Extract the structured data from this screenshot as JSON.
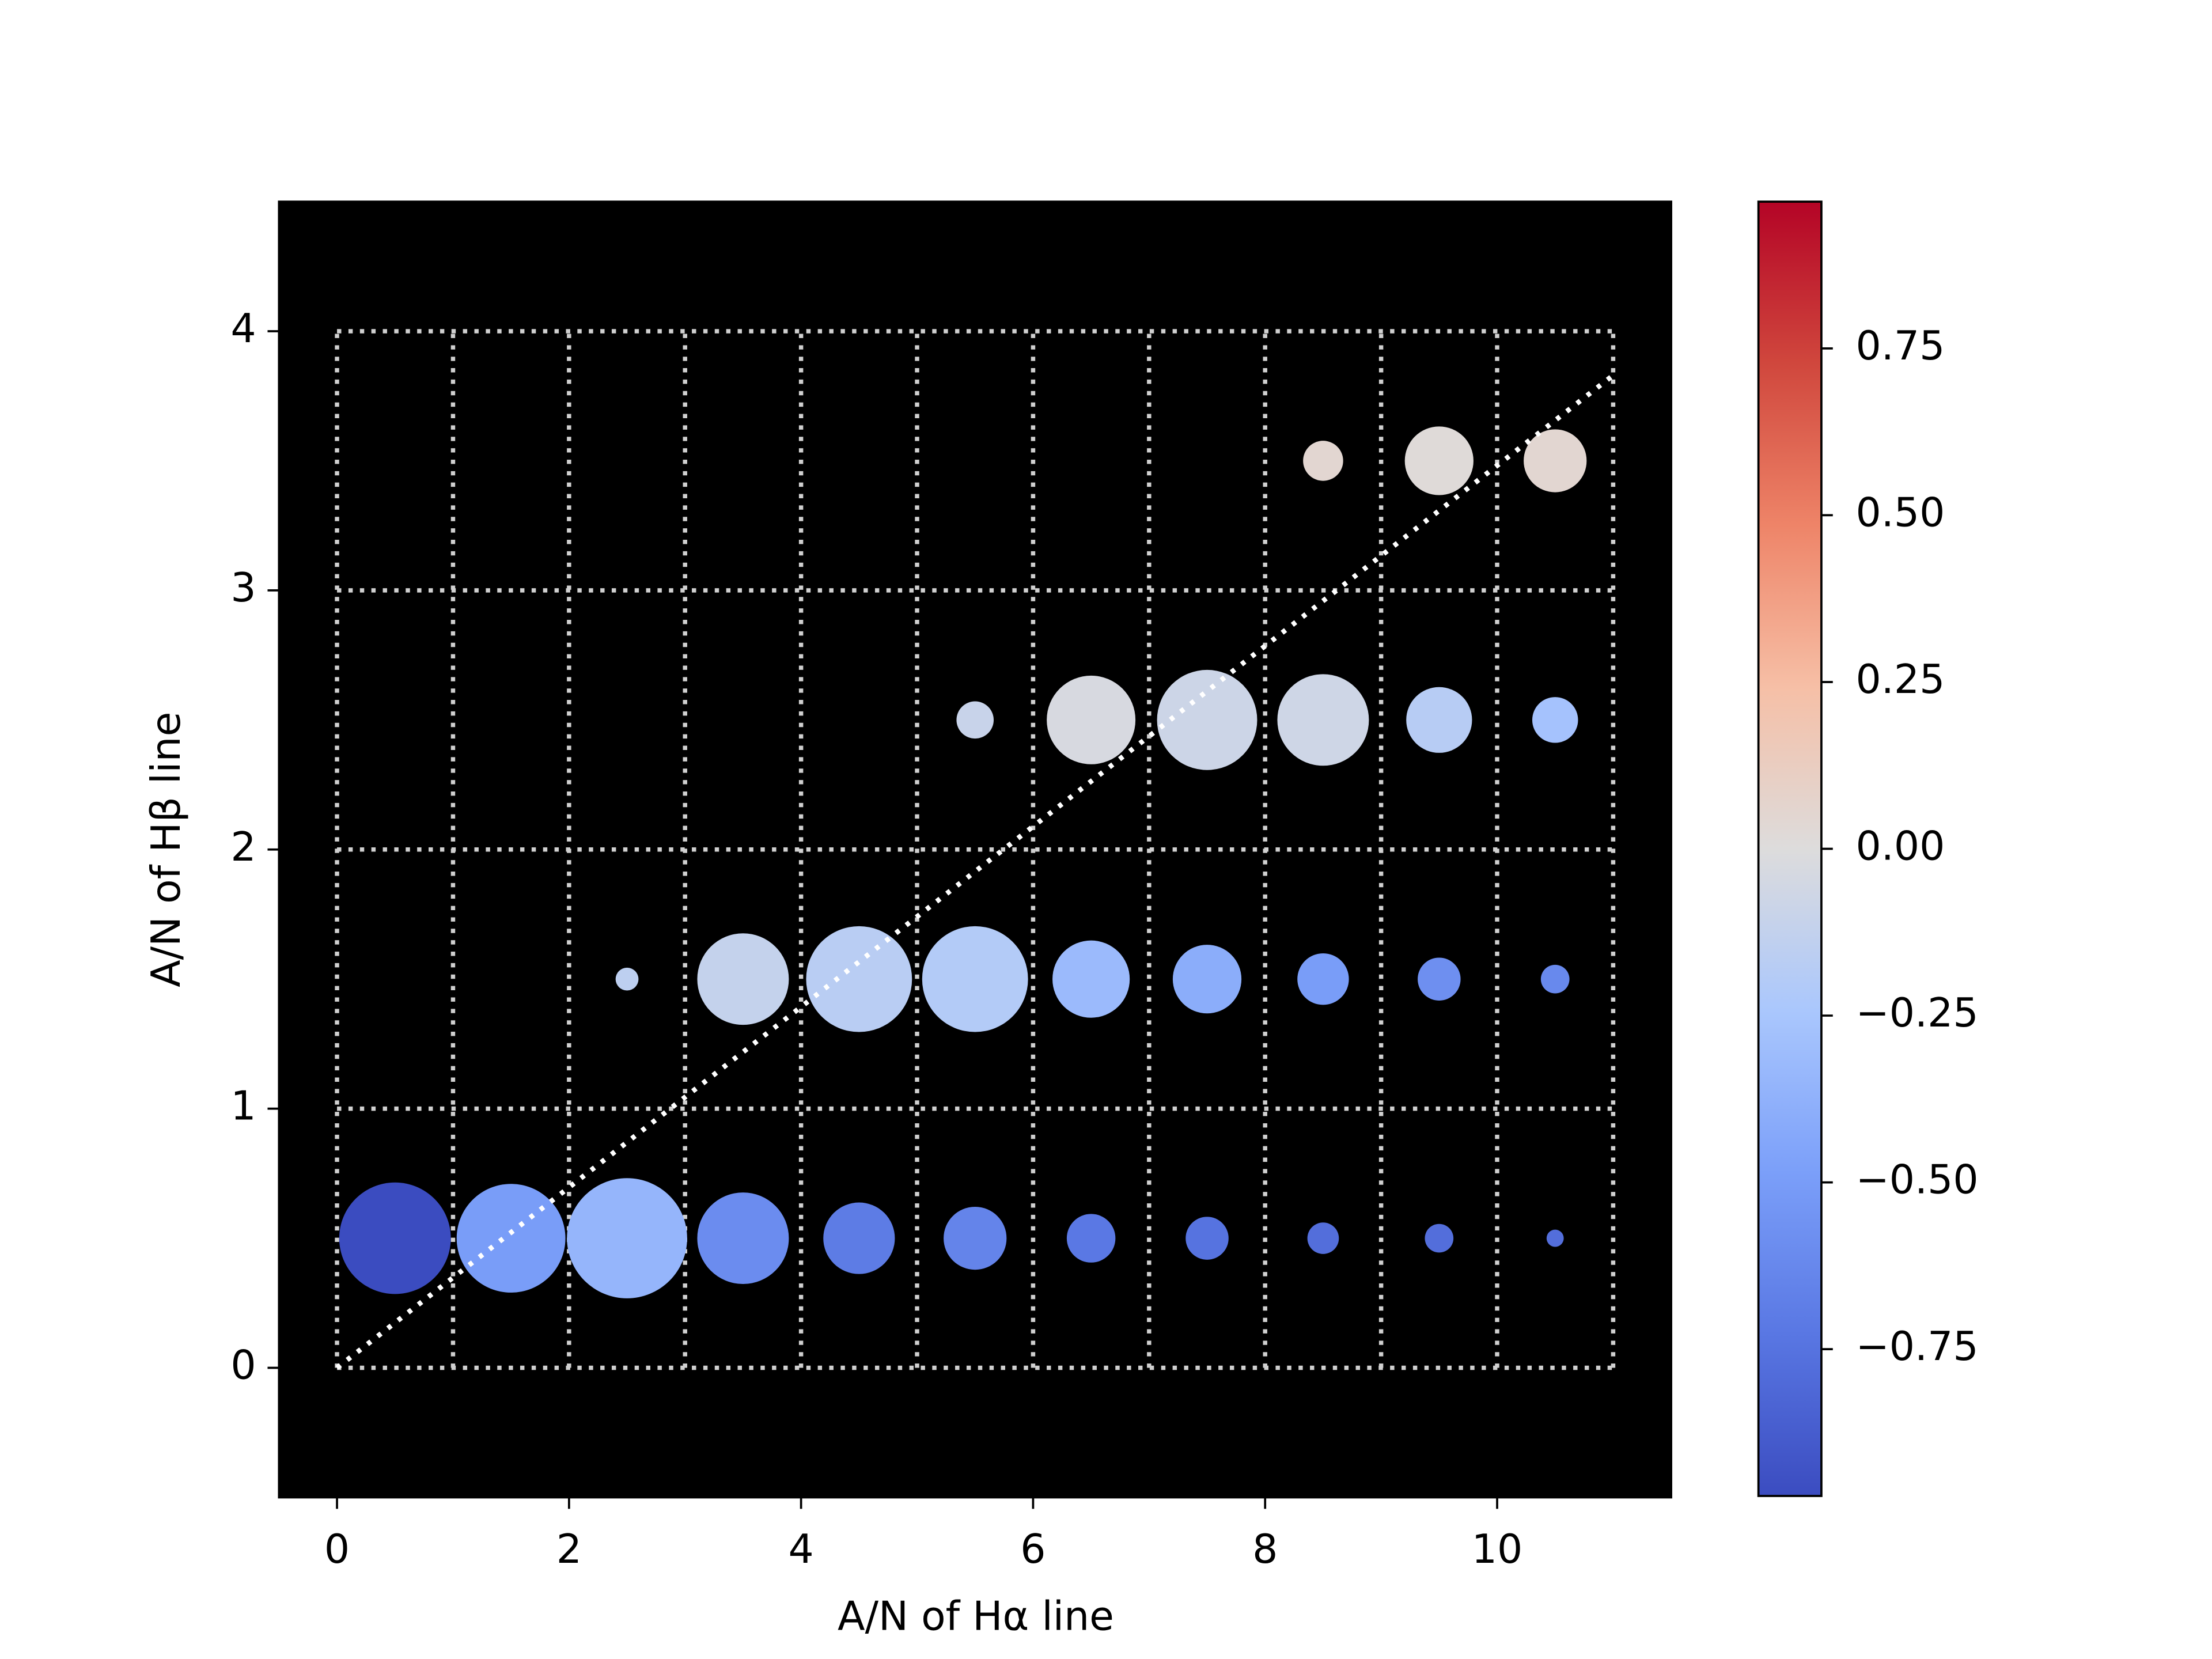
{
  "chart_data": {
    "type": "scatter",
    "xlabel": "A/N of Hα line",
    "ylabel": "A/N of Hβ line",
    "xlim": [
      -0.5,
      11.5
    ],
    "ylim": [
      -0.5,
      4.5
    ],
    "xticks": [
      0,
      2,
      4,
      6,
      8,
      10
    ],
    "yticks": [
      0,
      1,
      2,
      3,
      4
    ],
    "background": "#000000",
    "bin_edges_x": [
      0,
      1,
      2,
      3,
      4,
      5,
      6,
      7,
      8,
      9,
      10,
      11
    ],
    "bin_edges_y": [
      0,
      1,
      2,
      3,
      4
    ],
    "reference_line": {
      "x": [
        0,
        11
      ],
      "y": [
        0,
        3.83
      ]
    },
    "x": [
      0.5,
      1.5,
      2.5,
      3.5,
      4.5,
      5.5,
      6.5,
      7.5,
      8.5,
      9.5,
      10.5,
      2.5,
      3.5,
      4.5,
      5.5,
      6.5,
      7.5,
      8.5,
      9.5,
      10.5,
      5.5,
      6.5,
      7.5,
      8.5,
      9.5,
      10.5,
      8.5,
      9.5,
      10.5
    ],
    "y": [
      0.5,
      0.5,
      0.5,
      0.5,
      0.5,
      0.5,
      0.5,
      0.5,
      0.5,
      0.5,
      0.5,
      1.5,
      1.5,
      1.5,
      1.5,
      1.5,
      1.5,
      1.5,
      1.5,
      1.5,
      2.5,
      2.5,
      2.5,
      2.5,
      2.5,
      2.5,
      3.5,
      3.5,
      3.5
    ],
    "sizes": [
      39,
      38,
      42,
      32,
      25,
      22,
      17,
      15,
      11,
      10,
      6,
      8,
      32,
      37,
      37,
      27,
      24,
      18,
      15,
      10,
      13,
      31,
      35,
      32,
      23,
      16,
      14,
      24,
      22
    ],
    "colors": [
      -0.97,
      -0.5,
      -0.35,
      -0.6,
      -0.7,
      -0.65,
      -0.72,
      -0.75,
      -0.78,
      -0.78,
      -0.78,
      -0.15,
      -0.12,
      -0.17,
      -0.2,
      -0.32,
      -0.4,
      -0.5,
      -0.58,
      -0.62,
      -0.1,
      -0.03,
      -0.08,
      -0.07,
      -0.18,
      -0.27,
      0.05,
      0.02,
      0.05
    ],
    "colormap": "coolwarm",
    "clim": [
      -0.97,
      0.97
    ],
    "cticks": [
      {
        "value": -0.75,
        "label": "−0.75"
      },
      {
        "value": -0.5,
        "label": "−0.50"
      },
      {
        "value": -0.25,
        "label": "−0.25"
      },
      {
        "value": 0,
        "label": "0.00"
      },
      {
        "value": 0.25,
        "label": "0.25"
      },
      {
        "value": 0.5,
        "label": "0.50"
      },
      {
        "value": 0.75,
        "label": "0.75"
      }
    ]
  }
}
